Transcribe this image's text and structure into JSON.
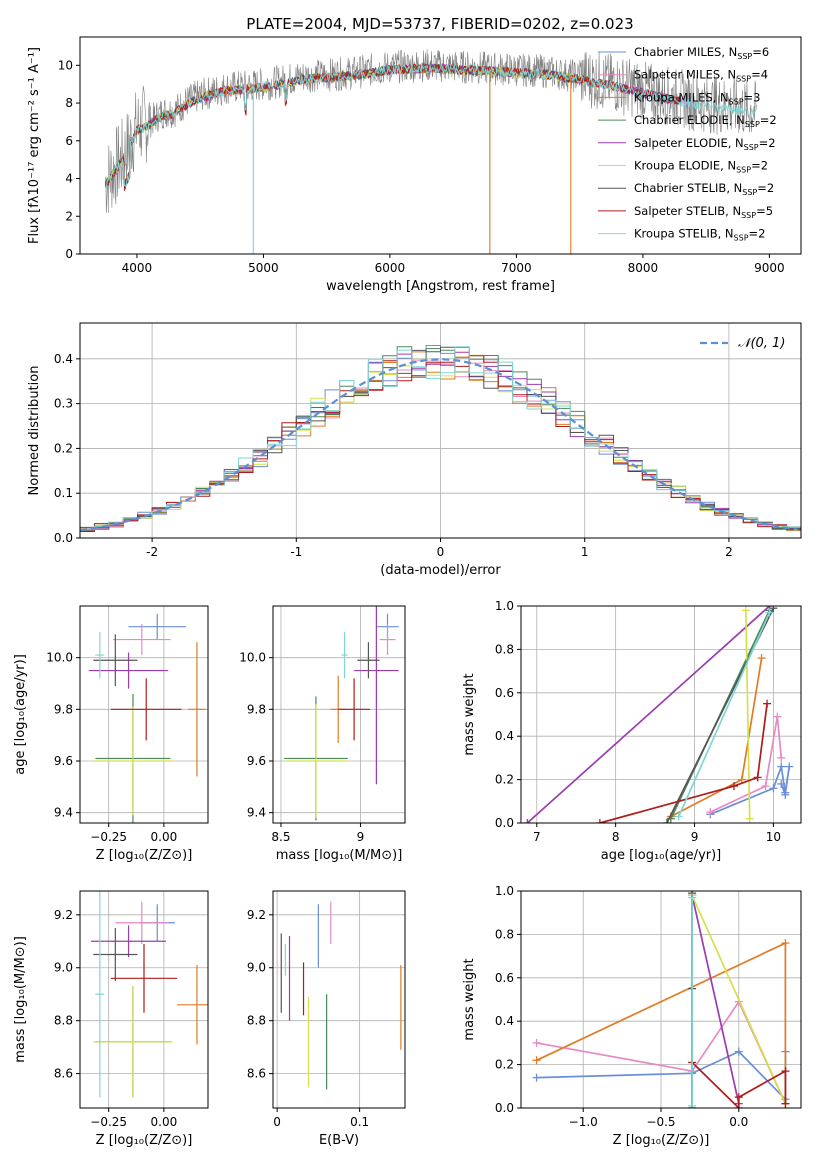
{
  "figure": {
    "title": "PLATE=2004, MJD=53737, FIBERID=0202, z=0.023",
    "colors": [
      "#6a8fd8",
      "#e68ac4",
      "#e07b24",
      "#4a8a5a",
      "#9b3bb0",
      "#d6e04a",
      "#555555",
      "#b01b1b",
      "#7fd6d6"
    ]
  },
  "chart_data": [
    {
      "id": "spectrum",
      "type": "line",
      "xlabel": "wavelength [Angstrom, rest frame]",
      "ylabel": "Flux [fλ10⁻¹⁷ erg cm⁻² s⁻¹ A⁻¹]",
      "xlim": [
        3550,
        9250
      ],
      "ylim": [
        0,
        11.5
      ],
      "xticks": [
        4000,
        5000,
        6000,
        7000,
        8000,
        9000
      ],
      "yticks": [
        0,
        2,
        4,
        6,
        8,
        10
      ],
      "legend_position": "top-right",
      "legend": [
        {
          "label": "Chabrier MILES, N",
          "sub": "SSP",
          "suffix": "=6"
        },
        {
          "label": "Salpeter MILES, N",
          "sub": "SSP",
          "suffix": "=4"
        },
        {
          "label": "Kroupa MILES, N",
          "sub": "SSP",
          "suffix": "=3"
        },
        {
          "label": "Chabrier ELODIE, N",
          "sub": "SSP",
          "suffix": "=2"
        },
        {
          "label": "Salpeter ELODIE, N",
          "sub": "SSP",
          "suffix": "=2"
        },
        {
          "label": "Kroupa ELODIE, N",
          "sub": "SSP",
          "suffix": "=2"
        },
        {
          "label": "Chabrier STELIB, N",
          "sub": "SSP",
          "suffix": "=2"
        },
        {
          "label": "Salpeter STELIB, N",
          "sub": "SSP",
          "suffix": "=5"
        },
        {
          "label": "Kroupa STELIB, N",
          "sub": "SSP",
          "suffix": "=2"
        }
      ],
      "data_color": "#808080",
      "continuum": {
        "x": [
          3750,
          3800,
          3900,
          3950,
          4000,
          4100,
          4200,
          4300,
          4400,
          4500,
          4700,
          4900,
          5100,
          5300,
          5500,
          5700,
          6000,
          6300,
          6600,
          6900,
          7200,
          7500,
          7800,
          8100,
          8400,
          8700,
          8900
        ],
        "y": [
          3.8,
          4.3,
          5.2,
          6.0,
          6.7,
          7.0,
          7.5,
          7.6,
          8.1,
          8.4,
          8.8,
          8.9,
          9.1,
          9.4,
          9.5,
          9.6,
          9.9,
          10.0,
          9.9,
          9.8,
          9.7,
          9.4,
          9.0,
          8.5,
          8.1,
          7.8,
          7.6
        ]
      },
      "dropouts": [
        {
          "x": 4920,
          "series": 8
        },
        {
          "x": 6790,
          "series": 2
        },
        {
          "x": 7430,
          "series": 2
        }
      ]
    },
    {
      "id": "residuals",
      "type": "histogram",
      "xlabel": "(data-model)/error",
      "ylabel": "Normed distribution",
      "xlim": [
        -2.5,
        2.5
      ],
      "ylim": [
        0,
        0.48
      ],
      "xticks": [
        -2,
        -1,
        0,
        1,
        2
      ],
      "yticks": [
        0.0,
        0.1,
        0.2,
        0.3,
        0.4
      ],
      "bin_width": 0.1,
      "grid": true,
      "legend_position": "top-right",
      "legend_label": "𝒩(0, 1)",
      "gaussian": {
        "mu": 0,
        "sigma": 1
      }
    },
    {
      "id": "age-vs-Z",
      "type": "errorbar",
      "xlabel": "Z [log₁₀(Z/Z⊙)]",
      "ylabel": "age  [log₁₀(age/yr)]",
      "xlim": [
        -0.38,
        0.2
      ],
      "ylim": [
        9.36,
        10.2
      ],
      "xticks": [
        -0.25,
        0.0
      ],
      "xtick_labels": [
        "−0.25",
        "0.00"
      ],
      "yticks": [
        9.4,
        9.6,
        9.8,
        10.0
      ],
      "grid": true,
      "points": [
        {
          "x": -0.03,
          "y": 10.12,
          "xerr": 0.13,
          "yerr": 0.05
        },
        {
          "x": -0.1,
          "y": 10.07,
          "xerr": 0.13,
          "yerr": 0.06
        },
        {
          "x": 0.15,
          "y": 9.8,
          "xerr": 0.04,
          "yerr": 0.26
        },
        {
          "x": -0.14,
          "y": 9.61,
          "xerr": 0.17,
          "yerr": 0.25
        },
        {
          "x": -0.16,
          "y": 9.95,
          "xerr": 0.18,
          "yerr": 0.07
        },
        {
          "x": -0.14,
          "y": 9.6,
          "xerr": 0.18,
          "yerr": 0.21
        },
        {
          "x": -0.22,
          "y": 9.99,
          "xerr": 0.1,
          "yerr": 0.1
        },
        {
          "x": -0.08,
          "y": 9.8,
          "xerr": 0.16,
          "yerr": 0.12
        },
        {
          "x": -0.29,
          "y": 10.01,
          "xerr": 0.02,
          "yerr": 0.09
        }
      ]
    },
    {
      "id": "age-vs-mass",
      "type": "errorbar",
      "xlabel": "mass [log₁₀(M/M⊙)]",
      "ylabel": "",
      "xlim": [
        8.45,
        9.28
      ],
      "ylim": [
        9.36,
        10.2
      ],
      "xticks": [
        8.5,
        9.0
      ],
      "yticks": [
        9.4,
        9.6,
        9.8,
        10.0
      ],
      "grid": true,
      "points": [
        {
          "x": 9.17,
          "y": 10.12,
          "xerr": 0.07,
          "yerr": 0.05
        },
        {
          "x": 9.17,
          "y": 10.07,
          "xerr": 0.05,
          "yerr": 0.06
        },
        {
          "x": 8.86,
          "y": 9.8,
          "xerr": 0.05,
          "yerr": 0.13
        },
        {
          "x": 8.72,
          "y": 9.61,
          "xerr": 0.2,
          "yerr": 0.24
        },
        {
          "x": 9.1,
          "y": 9.95,
          "xerr": 0.14,
          "yerr": 0.44
        },
        {
          "x": 8.72,
          "y": 9.6,
          "xerr": 0.19,
          "yerr": 0.22
        },
        {
          "x": 9.05,
          "y": 9.99,
          "xerr": 0.07,
          "yerr": 0.07
        },
        {
          "x": 8.96,
          "y": 9.8,
          "xerr": 0.1,
          "yerr": 0.12
        },
        {
          "x": 8.9,
          "y": 10.01,
          "xerr": 0.02,
          "yerr": 0.09
        }
      ]
    },
    {
      "id": "weight-vs-age",
      "type": "line",
      "xlabel": "age  [log₁₀(age/yr)]",
      "ylabel": "mass weight",
      "xlim": [
        6.8,
        10.35
      ],
      "ylim": [
        0,
        1.0
      ],
      "xticks": [
        7,
        8,
        9,
        10
      ],
      "yticks": [
        0.0,
        0.2,
        0.4,
        0.6,
        0.8,
        1.0
      ],
      "grid": true,
      "series": [
        {
          "x": [
            9.2,
            10.0,
            10.1,
            10.15,
            10.2,
            10.15,
            10.1
          ],
          "y": [
            0.04,
            0.16,
            0.26,
            0.14,
            0.26,
            0.13,
            0.18
          ]
        },
        {
          "x": [
            9.2,
            9.9,
            10.05,
            10.1
          ],
          "y": [
            0.05,
            0.17,
            0.49,
            0.3
          ]
        },
        {
          "x": [
            8.7,
            9.6,
            9.85
          ],
          "y": [
            0.03,
            0.2,
            0.76
          ]
        },
        {
          "x": [
            8.7,
            9.95
          ],
          "y": [
            0.02,
            0.98
          ]
        },
        {
          "x": [
            6.88,
            9.95
          ],
          "y": [
            0.0,
            1.0
          ]
        },
        {
          "x": [
            9.65,
            9.7
          ],
          "y": [
            0.98,
            0.02
          ]
        },
        {
          "x": [
            8.65,
            10.0
          ],
          "y": [
            0.0,
            0.99
          ]
        },
        {
          "x": [
            7.8,
            9.5,
            9.8,
            9.92
          ],
          "y": [
            0.0,
            0.17,
            0.21,
            0.55
          ]
        },
        {
          "x": [
            8.8,
            9.95
          ],
          "y": [
            0.03,
            0.97
          ]
        }
      ]
    },
    {
      "id": "mass-vs-Z",
      "type": "errorbar",
      "xlabel": "Z [log₁₀(Z/Z⊙)]",
      "ylabel": "mass [log₁₀(M/M⊙)]",
      "xlim": [
        -0.38,
        0.2
      ],
      "ylim": [
        8.47,
        9.29
      ],
      "xticks": [
        -0.25,
        0.0
      ],
      "xtick_labels": [
        "−0.25",
        "0.00"
      ],
      "yticks": [
        8.6,
        8.8,
        9.0,
        9.2
      ],
      "grid": true,
      "points": [
        {
          "x": -0.03,
          "y": 9.17,
          "xerr": 0.08,
          "yerr": 0.07
        },
        {
          "x": -0.1,
          "y": 9.17,
          "xerr": 0.12,
          "yerr": 0.08
        },
        {
          "x": 0.15,
          "y": 8.86,
          "xerr": 0.09,
          "yerr": 0.15
        },
        {
          "x": -0.14,
          "y": 8.72,
          "xerr": 0.17,
          "yerr": 0.21
        },
        {
          "x": -0.16,
          "y": 9.1,
          "xerr": 0.17,
          "yerr": 0.06
        },
        {
          "x": -0.14,
          "y": 8.72,
          "xerr": 0.18,
          "yerr": 0.21
        },
        {
          "x": -0.22,
          "y": 9.05,
          "xerr": 0.1,
          "yerr": 0.1
        },
        {
          "x": -0.09,
          "y": 8.96,
          "xerr": 0.15,
          "yerr": 0.13
        },
        {
          "x": -0.29,
          "y": 8.9,
          "xerr": 0.02,
          "yerr": 0.39
        }
      ]
    },
    {
      "id": "mass-vs-ebv",
      "type": "errorbar",
      "xlabel": "E(B-V)",
      "ylabel": "",
      "xlim": [
        -0.005,
        0.155
      ],
      "ylim": [
        8.47,
        9.29
      ],
      "xticks": [
        0.0,
        0.1
      ],
      "yticks": [
        8.6,
        8.8,
        9.0,
        9.2
      ],
      "grid": true,
      "points": [
        {
          "x": 0.05,
          "y": 9.12,
          "xerr": 0,
          "yerr": 0.12
        },
        {
          "x": 0.065,
          "y": 9.17,
          "xerr": 0,
          "yerr": 0.08
        },
        {
          "x": 0.15,
          "y": 8.85,
          "xerr": 0,
          "yerr": 0.16
        },
        {
          "x": 0.06,
          "y": 8.72,
          "xerr": 0,
          "yerr": 0.18
        },
        {
          "x": 0.015,
          "y": 8.96,
          "xerr": 0,
          "yerr": 0.16
        },
        {
          "x": 0.038,
          "y": 8.72,
          "xerr": 0,
          "yerr": 0.17
        },
        {
          "x": 0.005,
          "y": 8.98,
          "xerr": 0,
          "yerr": 0.15
        },
        {
          "x": 0.032,
          "y": 8.92,
          "xerr": 0,
          "yerr": 0.1
        },
        {
          "x": 0.01,
          "y": 9.03,
          "xerr": 0,
          "yerr": 0.06
        }
      ]
    },
    {
      "id": "weight-vs-Z",
      "type": "line",
      "xlabel": "Z [log₁₀(Z/Z⊙)]",
      "ylabel": "mass weight",
      "xlim": [
        -1.4,
        0.4
      ],
      "ylim": [
        0,
        1.0
      ],
      "xticks": [
        -1.0,
        -0.5,
        0.0
      ],
      "xtick_labels": [
        "−1.0",
        "−0.5",
        "0.0"
      ],
      "yticks": [
        0.0,
        0.2,
        0.4,
        0.6,
        0.8,
        1.0
      ],
      "grid": true,
      "series": [
        {
          "x": [
            -1.3,
            -0.3,
            0.0,
            0.3,
            0.3
          ],
          "y": [
            0.14,
            0.16,
            0.26,
            0.04,
            0.26
          ]
        },
        {
          "x": [
            -1.3,
            -0.3,
            0.0,
            0.3
          ],
          "y": [
            0.3,
            0.17,
            0.49,
            0.02
          ]
        },
        {
          "x": [
            -1.3,
            0.3,
            0.3
          ],
          "y": [
            0.22,
            0.76,
            0.02
          ]
        },
        {
          "x": [
            -0.3,
            -0.3
          ],
          "y": [
            0.0,
            0.98
          ]
        },
        {
          "x": [
            -0.3,
            0.0
          ],
          "y": [
            0.98,
            0.02
          ]
        },
        {
          "x": [
            -0.3,
            0.3
          ],
          "y": [
            0.98,
            0.02
          ]
        },
        {
          "x": [
            -0.3,
            -0.3,
            -0.3
          ],
          "y": [
            0.0,
            0.55,
            0.99
          ]
        },
        {
          "x": [
            -0.3,
            0.0,
            0.0,
            0.3,
            0.3
          ],
          "y": [
            0.21,
            0.0,
            0.05,
            0.17,
            0.02
          ]
        },
        {
          "x": [
            -0.3,
            -0.3
          ],
          "y": [
            0.01,
            0.97
          ]
        }
      ]
    }
  ]
}
